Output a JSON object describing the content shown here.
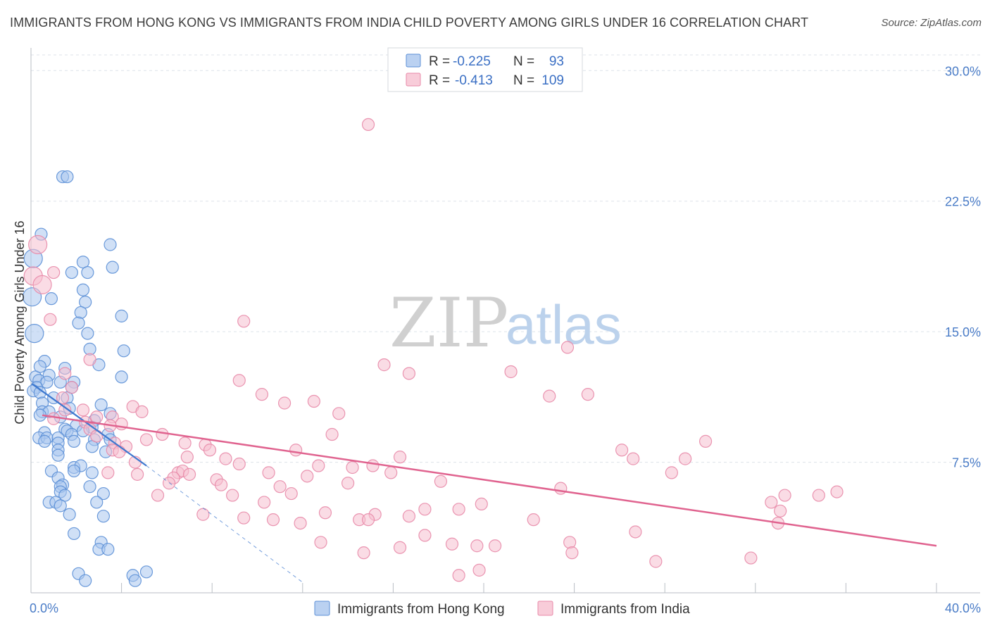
{
  "title": "IMMIGRANTS FROM HONG KONG VS IMMIGRANTS FROM INDIA CHILD POVERTY AMONG GIRLS UNDER 16 CORRELATION CHART",
  "source": "Source: ZipAtlas.com",
  "watermark": {
    "zip": "ZIP",
    "atlas": "atlas"
  },
  "colors": {
    "hk_fill": "#a9c6ee",
    "hk_stroke": "#5b8fd6",
    "hk_line": "#3d78cf",
    "in_fill": "#f6bfd0",
    "in_stroke": "#e889a8",
    "in_line": "#e0638f",
    "grid": "#dde3ea",
    "tick_text": "#4a7cc7"
  },
  "legend": {
    "rows": [
      {
        "r_label": "R =",
        "r_value": "-0.225",
        "n_label": "N =",
        "n_value": "93"
      },
      {
        "r_label": "R =",
        "r_value": "-0.413",
        "n_label": "N =",
        "n_value": "109"
      }
    ]
  },
  "chart_data": {
    "type": "scatter",
    "title": "IMMIGRANTS FROM HONG KONG VS IMMIGRANTS FROM INDIA CHILD POVERTY AMONG GIRLS UNDER 16 CORRELATION CHART",
    "xlabel": "",
    "ylabel": "Child Poverty Among Girls Under 16",
    "xlim": [
      0,
      40
    ],
    "ylim": [
      0,
      30.9
    ],
    "x_tick_labels": [
      "0.0%",
      "40.0%"
    ],
    "y_ticks": [
      7.5,
      15.0,
      22.5,
      30.0
    ],
    "y_tick_labels": [
      "7.5%",
      "15.0%",
      "22.5%",
      "30.0%"
    ],
    "grid": true,
    "legend_position": "top-center",
    "series": [
      {
        "name": "Immigrants from Hong Kong",
        "r": -0.225,
        "n": 93,
        "trend": {
          "x0": 0.05,
          "y0": 12.0,
          "x1": 5.1,
          "y1": 7.3,
          "dash_to_x": 12.0,
          "dash_to_y": 0.6
        },
        "points": [
          [
            1.4,
            23.9
          ],
          [
            1.6,
            23.9
          ],
          [
            0.45,
            20.6
          ],
          [
            3.5,
            20.0
          ],
          [
            0.1,
            19.2
          ],
          [
            2.3,
            19.0
          ],
          [
            3.6,
            18.7
          ],
          [
            1.8,
            18.4
          ],
          [
            2.5,
            18.4
          ],
          [
            2.3,
            17.4
          ],
          [
            0.05,
            17.0
          ],
          [
            0.9,
            16.9
          ],
          [
            2.4,
            16.7
          ],
          [
            2.2,
            16.1
          ],
          [
            4.0,
            15.9
          ],
          [
            2.1,
            15.5
          ],
          [
            0.15,
            14.9
          ],
          [
            2.5,
            14.9
          ],
          [
            2.6,
            14.0
          ],
          [
            4.1,
            13.9
          ],
          [
            0.6,
            13.3
          ],
          [
            3.0,
            13.1
          ],
          [
            1.5,
            12.9
          ],
          [
            0.8,
            12.5
          ],
          [
            0.2,
            12.4
          ],
          [
            4.0,
            12.4
          ],
          [
            0.35,
            12.2
          ],
          [
            0.7,
            12.1
          ],
          [
            1.3,
            12.1
          ],
          [
            1.9,
            12.1
          ],
          [
            0.25,
            11.8
          ],
          [
            0.1,
            11.6
          ],
          [
            0.4,
            11.5
          ],
          [
            1.8,
            11.8
          ],
          [
            1.0,
            11.2
          ],
          [
            1.6,
            11.2
          ],
          [
            0.5,
            10.9
          ],
          [
            3.1,
            10.8
          ],
          [
            1.7,
            10.6
          ],
          [
            0.5,
            10.4
          ],
          [
            0.8,
            10.4
          ],
          [
            3.5,
            10.3
          ],
          [
            0.4,
            10.2
          ],
          [
            1.3,
            10.1
          ],
          [
            2.8,
            9.9
          ],
          [
            2.0,
            9.6
          ],
          [
            2.7,
            9.5
          ],
          [
            1.5,
            9.4
          ],
          [
            1.6,
            9.3
          ],
          [
            2.3,
            9.3
          ],
          [
            0.6,
            9.2
          ],
          [
            1.8,
            9.1
          ],
          [
            3.4,
            9.1
          ],
          [
            0.35,
            8.9
          ],
          [
            0.7,
            8.9
          ],
          [
            1.2,
            8.9
          ],
          [
            3.5,
            8.8
          ],
          [
            0.6,
            8.7
          ],
          [
            1.9,
            8.7
          ],
          [
            2.8,
            8.8
          ],
          [
            1.2,
            8.6
          ],
          [
            2.7,
            8.4
          ],
          [
            1.2,
            8.2
          ],
          [
            3.3,
            8.1
          ],
          [
            1.2,
            7.9
          ],
          [
            1.9,
            7.2
          ],
          [
            2.2,
            7.3
          ],
          [
            0.9,
            7.0
          ],
          [
            1.9,
            7.0
          ],
          [
            2.7,
            6.9
          ],
          [
            1.2,
            6.6
          ],
          [
            1.4,
            6.2
          ],
          [
            1.3,
            6.1
          ],
          [
            2.6,
            6.1
          ],
          [
            1.3,
            5.8
          ],
          [
            1.5,
            5.6
          ],
          [
            3.2,
            5.7
          ],
          [
            0.8,
            5.2
          ],
          [
            1.1,
            5.2
          ],
          [
            1.3,
            5.0
          ],
          [
            2.9,
            5.2
          ],
          [
            1.7,
            4.5
          ],
          [
            3.2,
            4.4
          ],
          [
            1.9,
            3.4
          ],
          [
            3.1,
            2.9
          ],
          [
            3.0,
            2.5
          ],
          [
            3.4,
            2.5
          ],
          [
            2.1,
            1.1
          ],
          [
            4.5,
            1.0
          ],
          [
            5.1,
            1.2
          ],
          [
            2.4,
            0.7
          ],
          [
            4.6,
            0.7
          ],
          [
            0.4,
            13.0
          ]
        ]
      },
      {
        "name": "Immigrants from India",
        "r": -0.413,
        "n": 109,
        "trend": {
          "x0": 0.5,
          "y0": 10.2,
          "x1": 40.0,
          "y1": 2.7
        },
        "points": [
          [
            0.3,
            20.0
          ],
          [
            0.1,
            18.2
          ],
          [
            0.5,
            17.7
          ],
          [
            1.0,
            18.4
          ],
          [
            0.85,
            15.7
          ],
          [
            9.4,
            15.6
          ],
          [
            14.9,
            26.9
          ],
          [
            23.7,
            14.1
          ],
          [
            15.6,
            13.1
          ],
          [
            2.6,
            13.4
          ],
          [
            1.5,
            12.6
          ],
          [
            16.7,
            12.6
          ],
          [
            21.2,
            12.7
          ],
          [
            9.2,
            12.2
          ],
          [
            1.8,
            11.8
          ],
          [
            1.4,
            11.2
          ],
          [
            10.2,
            11.4
          ],
          [
            12.5,
            11.0
          ],
          [
            11.2,
            10.9
          ],
          [
            22.9,
            11.3
          ],
          [
            24.6,
            11.4
          ],
          [
            4.5,
            10.7
          ],
          [
            2.3,
            10.5
          ],
          [
            1.5,
            10.5
          ],
          [
            4.9,
            10.4
          ],
          [
            13.6,
            10.3
          ],
          [
            2.9,
            10.1
          ],
          [
            1.0,
            10.0
          ],
          [
            2.4,
            9.8
          ],
          [
            3.6,
            10.1
          ],
          [
            4.0,
            9.7
          ],
          [
            2.6,
            9.4
          ],
          [
            3.5,
            9.6
          ],
          [
            5.8,
            9.1
          ],
          [
            13.3,
            9.1
          ],
          [
            2.9,
            9.0
          ],
          [
            5.1,
            8.8
          ],
          [
            6.8,
            8.6
          ],
          [
            7.7,
            8.5
          ],
          [
            3.7,
            8.6
          ],
          [
            4.2,
            8.4
          ],
          [
            3.6,
            8.2
          ],
          [
            7.9,
            8.2
          ],
          [
            3.9,
            8.1
          ],
          [
            11.7,
            8.2
          ],
          [
            26.1,
            8.2
          ],
          [
            29.8,
            8.7
          ],
          [
            16.3,
            7.8
          ],
          [
            6.9,
            7.8
          ],
          [
            8.6,
            7.7
          ],
          [
            4.6,
            7.5
          ],
          [
            9.2,
            7.4
          ],
          [
            12.7,
            7.3
          ],
          [
            14.2,
            7.2
          ],
          [
            15.1,
            7.3
          ],
          [
            26.6,
            7.7
          ],
          [
            28.9,
            7.7
          ],
          [
            3.4,
            6.9
          ],
          [
            4.7,
            6.8
          ],
          [
            6.5,
            6.9
          ],
          [
            6.7,
            7.0
          ],
          [
            7.0,
            6.8
          ],
          [
            10.5,
            6.9
          ],
          [
            12.2,
            6.7
          ],
          [
            15.9,
            6.9
          ],
          [
            6.3,
            6.6
          ],
          [
            6.1,
            6.3
          ],
          [
            8.2,
            6.5
          ],
          [
            8.4,
            6.2
          ],
          [
            11.0,
            6.1
          ],
          [
            14.0,
            6.3
          ],
          [
            18.1,
            6.4
          ],
          [
            23.4,
            6.0
          ],
          [
            28.3,
            6.9
          ],
          [
            5.6,
            5.6
          ],
          [
            8.9,
            5.6
          ],
          [
            11.5,
            5.7
          ],
          [
            10.3,
            5.2
          ],
          [
            19.9,
            5.1
          ],
          [
            17.4,
            4.8
          ],
          [
            18.9,
            4.8
          ],
          [
            16.7,
            4.4
          ],
          [
            13.0,
            4.6
          ],
          [
            15.2,
            4.5
          ],
          [
            7.6,
            4.5
          ],
          [
            9.4,
            4.3
          ],
          [
            10.7,
            4.2
          ],
          [
            11.9,
            4.0
          ],
          [
            14.5,
            4.2
          ],
          [
            14.9,
            4.2
          ],
          [
            22.2,
            4.2
          ],
          [
            32.7,
            5.2
          ],
          [
            33.3,
            5.6
          ],
          [
            34.8,
            5.6
          ],
          [
            35.6,
            5.8
          ],
          [
            33.1,
            4.7
          ],
          [
            33.0,
            4.0
          ],
          [
            26.7,
            3.5
          ],
          [
            17.4,
            3.3
          ],
          [
            12.8,
            2.9
          ],
          [
            23.8,
            2.9
          ],
          [
            16.3,
            2.6
          ],
          [
            18.6,
            2.8
          ],
          [
            19.7,
            2.7
          ],
          [
            20.5,
            2.7
          ],
          [
            14.7,
            2.3
          ],
          [
            23.9,
            2.3
          ],
          [
            27.6,
            1.8
          ],
          [
            31.8,
            2.0
          ],
          [
            18.9,
            1.0
          ],
          [
            19.8,
            1.3
          ]
        ]
      }
    ]
  },
  "bottom_legend": {
    "items": [
      "Immigrants from Hong Kong",
      "Immigrants from India"
    ]
  }
}
